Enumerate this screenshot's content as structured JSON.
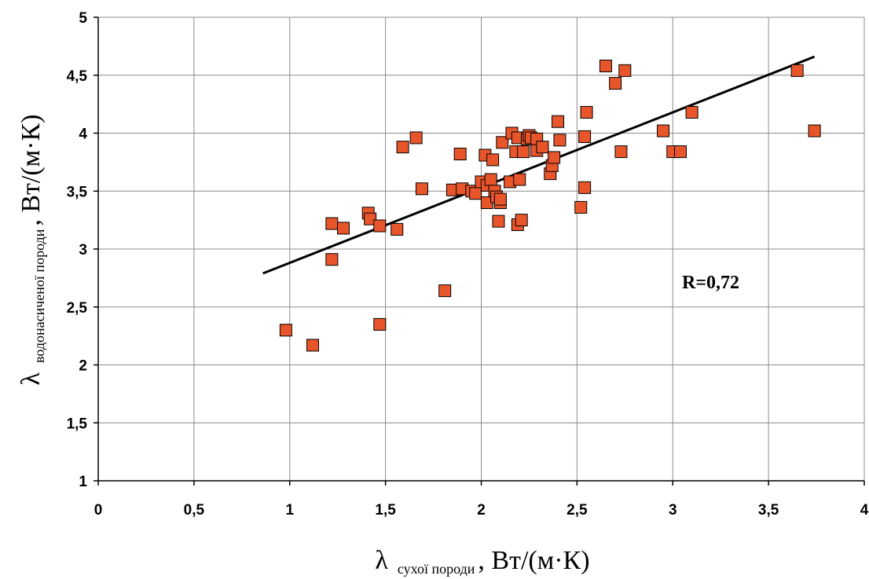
{
  "chart_data": {
    "type": "scatter",
    "xlim": [
      0,
      4
    ],
    "ylim": [
      1,
      5
    ],
    "x_ticks": [
      "0",
      "0,5",
      "1",
      "1,5",
      "2",
      "2,5",
      "3",
      "3,5",
      "4"
    ],
    "y_ticks": [
      "1",
      "1,5",
      "2",
      "2,5",
      "3",
      "3,5",
      "4",
      "4,5",
      "5"
    ],
    "xlabel": {
      "symbol": "λ",
      "subscript": "сухої породи",
      "unit": ", Вт/(м·К)"
    },
    "ylabel": {
      "symbol": "λ",
      "subscript": "водонасиченої породи",
      "unit": ", Вт/(м·К)"
    },
    "grid": true,
    "annotation": "R=0,72",
    "marker_color": "#E8552A",
    "trendline": {
      "x": [
        0.86,
        3.74
      ],
      "y": [
        2.79,
        4.66
      ]
    },
    "points": [
      [
        0.98,
        2.3
      ],
      [
        1.12,
        2.17
      ],
      [
        1.22,
        3.22
      ],
      [
        1.22,
        2.91
      ],
      [
        1.28,
        3.18
      ],
      [
        1.41,
        3.31
      ],
      [
        1.42,
        3.26
      ],
      [
        1.47,
        3.2
      ],
      [
        1.47,
        2.35
      ],
      [
        1.56,
        3.17
      ],
      [
        1.59,
        3.88
      ],
      [
        1.66,
        3.96
      ],
      [
        1.69,
        3.52
      ],
      [
        1.81,
        2.64
      ],
      [
        1.85,
        3.51
      ],
      [
        1.89,
        3.82
      ],
      [
        1.9,
        3.52
      ],
      [
        1.95,
        3.5
      ],
      [
        1.97,
        3.48
      ],
      [
        2.0,
        3.58
      ],
      [
        2.02,
        3.81
      ],
      [
        2.03,
        3.55
      ],
      [
        2.03,
        3.4
      ],
      [
        2.05,
        3.6
      ],
      [
        2.06,
        3.77
      ],
      [
        2.07,
        3.5
      ],
      [
        2.08,
        3.45
      ],
      [
        2.09,
        3.24
      ],
      [
        2.1,
        3.4
      ],
      [
        2.1,
        3.43
      ],
      [
        2.11,
        3.92
      ],
      [
        2.15,
        3.58
      ],
      [
        2.16,
        4.0
      ],
      [
        2.18,
        3.84
      ],
      [
        2.19,
        3.96
      ],
      [
        2.19,
        3.21
      ],
      [
        2.2,
        3.6
      ],
      [
        2.21,
        3.25
      ],
      [
        2.22,
        3.84
      ],
      [
        2.24,
        3.95
      ],
      [
        2.25,
        3.98
      ],
      [
        2.26,
        3.96
      ],
      [
        2.29,
        3.95
      ],
      [
        2.29,
        3.85
      ],
      [
        2.32,
        3.88
      ],
      [
        2.36,
        3.65
      ],
      [
        2.37,
        3.72
      ],
      [
        2.38,
        3.79
      ],
      [
        2.4,
        4.1
      ],
      [
        2.41,
        3.94
      ],
      [
        2.52,
        3.36
      ],
      [
        2.54,
        3.53
      ],
      [
        2.54,
        3.97
      ],
      [
        2.55,
        4.18
      ],
      [
        2.65,
        4.58
      ],
      [
        2.7,
        4.43
      ],
      [
        2.73,
        3.84
      ],
      [
        2.75,
        4.54
      ],
      [
        2.95,
        4.02
      ],
      [
        3.0,
        3.84
      ],
      [
        3.04,
        3.84
      ],
      [
        3.1,
        4.18
      ],
      [
        3.65,
        4.54
      ],
      [
        3.74,
        4.02
      ]
    ]
  }
}
